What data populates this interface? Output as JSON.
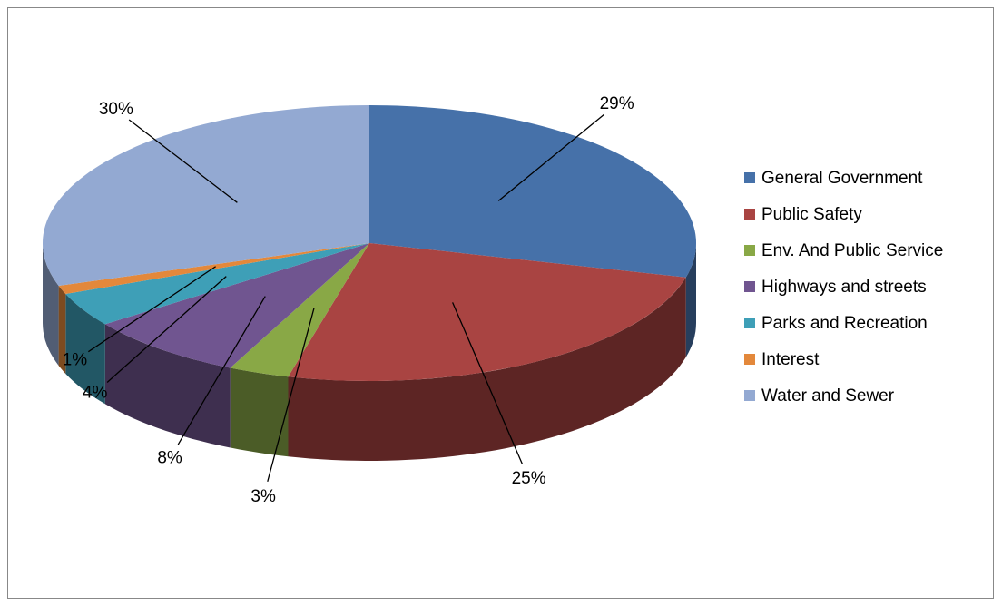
{
  "chart_data": {
    "type": "pie",
    "categories": [
      "General Government",
      "Public Safety",
      "Env. And Public Service",
      "Highways and streets",
      "Parks and Recreation",
      "Interest",
      "Water and Sewer"
    ],
    "values": [
      29,
      25,
      3,
      8,
      4,
      1,
      30
    ],
    "value_labels": [
      "29%",
      "25%",
      "3%",
      "8%",
      "4%",
      "1%",
      "30%"
    ],
    "colors": [
      "#4671a9",
      "#a94442",
      "#89a846",
      "#705590",
      "#3e9fb7",
      "#e3883b",
      "#93a9d2"
    ],
    "legend": "right"
  }
}
